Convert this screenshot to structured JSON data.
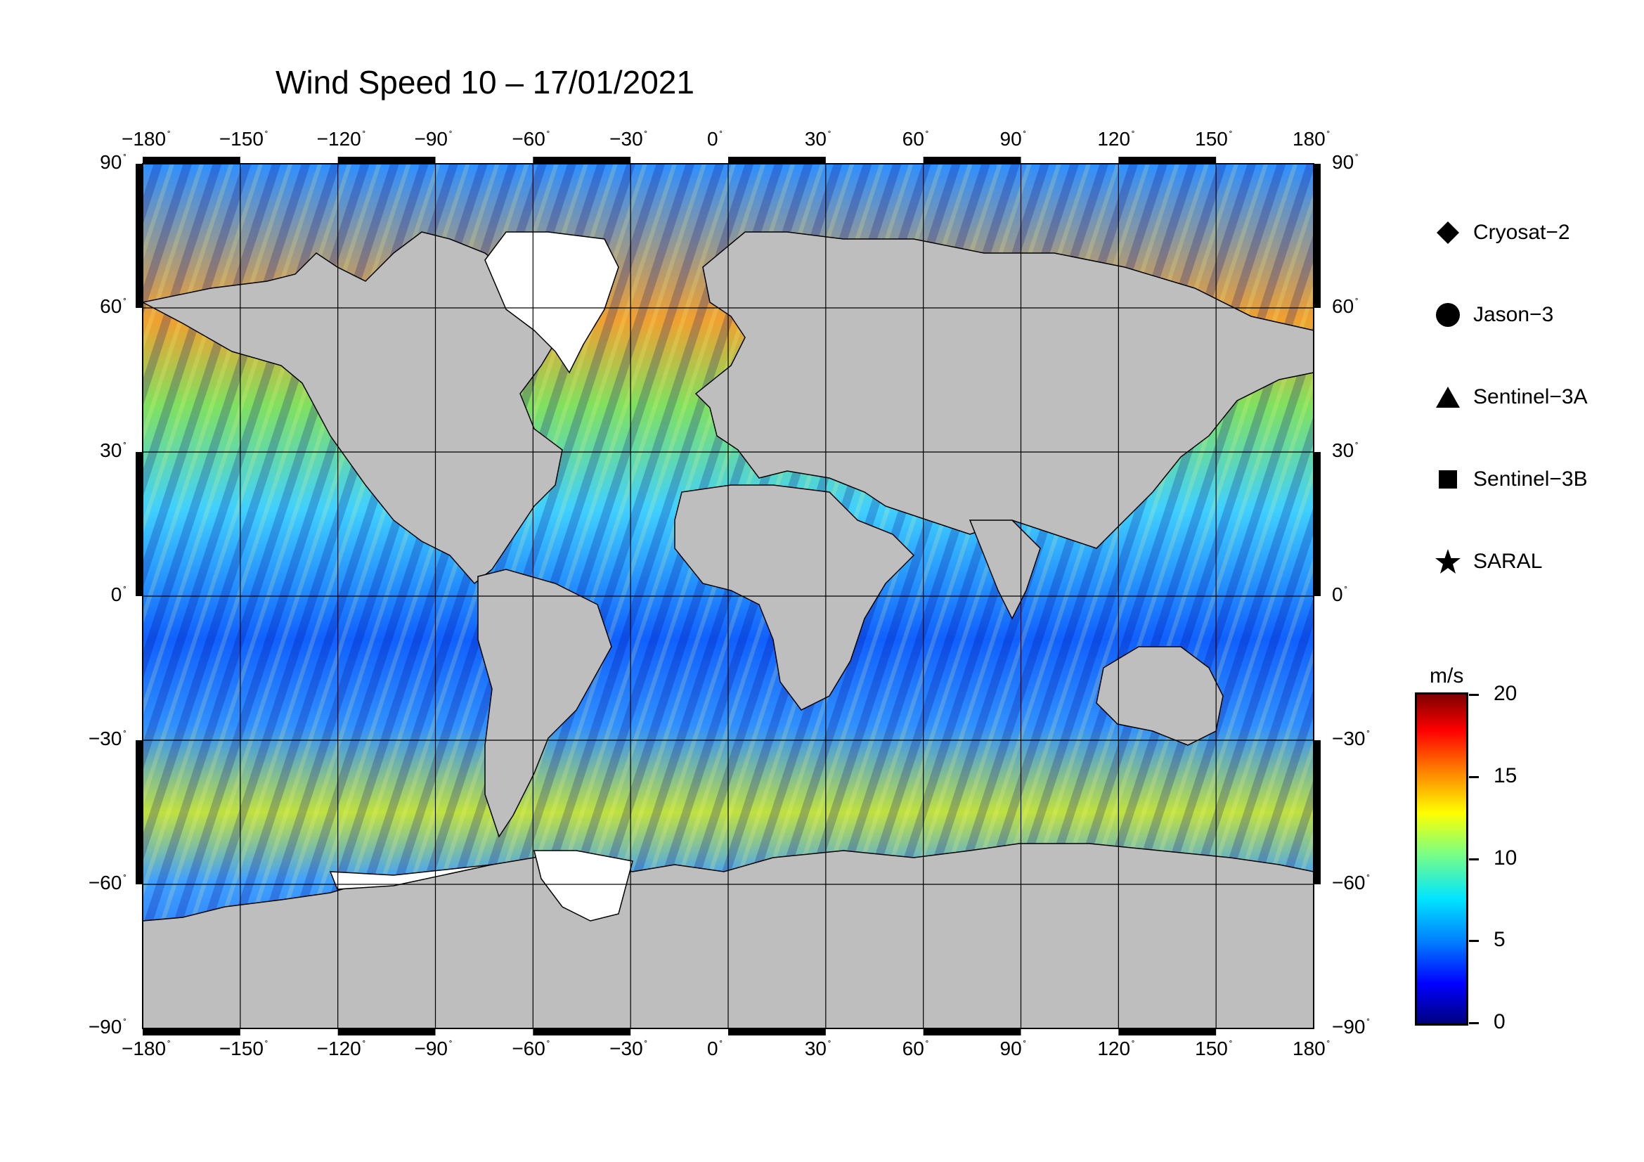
{
  "title": "Wind Speed 10 – 17/01/2021",
  "lon_ticks": [
    "−180",
    "−150",
    "−120",
    "−90",
    "−60",
    "−30",
    "0",
    "30",
    "60",
    "90",
    "120",
    "150",
    "180"
  ],
  "lat_ticks": [
    "90",
    "60",
    "30",
    "0",
    "−30",
    "−60",
    "−90"
  ],
  "degree_symbol": "˚",
  "legend": [
    {
      "label": "Cryosat−2",
      "icon": "diamond-icon"
    },
    {
      "label": "Jason−3",
      "icon": "circle-icon"
    },
    {
      "label": "Sentinel−3A",
      "icon": "triangle-icon"
    },
    {
      "label": "Sentinel−3B",
      "icon": "square-icon"
    },
    {
      "label": "SARAL",
      "icon": "star-icon"
    }
  ],
  "colorbar": {
    "unit": "m/s",
    "ticks": [
      "20",
      "15",
      "10",
      "5",
      "0"
    ],
    "range": [
      0,
      20
    ],
    "colormap": [
      "#00007f",
      "#0000ff",
      "#007fff",
      "#00e5ff",
      "#7fff7f",
      "#ffff00",
      "#ff7f00",
      "#ff0000",
      "#7f0000"
    ]
  },
  "colors": {
    "land": "#bebebe",
    "ice": "#ffffff",
    "frame": "#000000"
  }
}
